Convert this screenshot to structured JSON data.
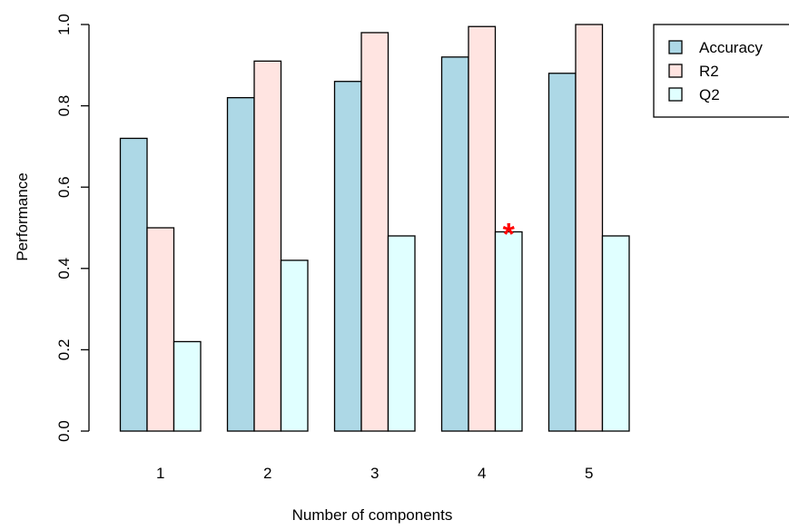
{
  "chart_data": {
    "type": "bar",
    "xlabel": "Number of components",
    "ylabel": "Performance",
    "categories": [
      "1",
      "2",
      "3",
      "4",
      "5"
    ],
    "ylim": [
      0,
      1
    ],
    "yticks": [
      "0.0",
      "0.2",
      "0.4",
      "0.6",
      "0.8",
      "1.0"
    ],
    "grid": false,
    "legend_position": "top-right",
    "series": [
      {
        "name": "Accuracy",
        "color": "#add8e6",
        "values": [
          0.72,
          0.82,
          0.86,
          0.92,
          0.88
        ]
      },
      {
        "name": "R2",
        "color": "#ffe4e1",
        "values": [
          0.5,
          0.91,
          0.98,
          0.995,
          1.0
        ]
      },
      {
        "name": "Q2",
        "color": "#e0ffff",
        "values": [
          0.22,
          0.42,
          0.48,
          0.49,
          0.48
        ]
      }
    ],
    "annotation": {
      "text": "*",
      "color": "#ff0000",
      "category": "4",
      "series": "Q2"
    }
  }
}
